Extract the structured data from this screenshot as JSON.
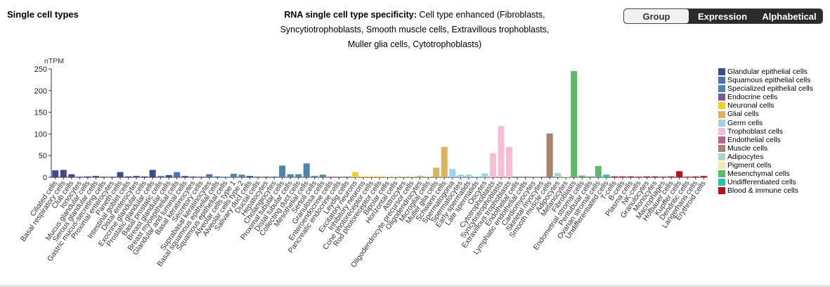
{
  "header": {
    "section_title": "Single cell types",
    "chart_title_bold": "RNA single cell type specificity:",
    "chart_title_rest": "Cell type enhanced (Fibroblasts, Syncytiotrophoblasts, Smooth muscle cells, Extravillous trophoblasts, Muller glia cells, Cytotrophoblasts)"
  },
  "toggle": {
    "group_label": "Group",
    "expression_label": "Expression",
    "alphabetical_label": "Alphabetical",
    "active": "Group"
  },
  "groups": [
    {
      "name": "Glandular epithelial cells",
      "color": "#3e4a89"
    },
    {
      "name": "Squamous epithelial cells",
      "color": "#4a72b8"
    },
    {
      "name": "Specialized epithelial cells",
      "color": "#4f86a8"
    },
    {
      "name": "Endocrine cells",
      "color": "#7c5a9e"
    },
    {
      "name": "Neuronal cells",
      "color": "#f2d024"
    },
    {
      "name": "Glial cells",
      "color": "#d9b35f"
    },
    {
      "name": "Germ cells",
      "color": "#99d4f0"
    },
    {
      "name": "Trophoblast cells",
      "color": "#f5bdd6"
    },
    {
      "name": "Endothelial cells",
      "color": "#b5678e"
    },
    {
      "name": "Muscle cells",
      "color": "#a8826b"
    },
    {
      "name": "Adipocytes",
      "color": "#a8d8cc"
    },
    {
      "name": "Pigment cells",
      "color": "#f5e8a8"
    },
    {
      "name": "Mesenchymal cells",
      "color": "#5fb96a"
    },
    {
      "name": "Undifferentiated cells",
      "color": "#22c4b0"
    },
    {
      "name": "Blood & immune cells",
      "color": "#b5121b"
    }
  ],
  "chart_data": {
    "type": "bar",
    "ylabel": "nTPM",
    "ylim": [
      0,
      250
    ],
    "yticks": [
      0,
      50,
      100,
      150,
      200,
      250
    ],
    "categories": [
      "Ciliated cells",
      "Basal respiratory cells",
      "Club cells",
      "Ionocytes",
      "Mucus glandular cells",
      "Serous glandular cells",
      "Gastric mucus-secreting cells",
      "Proximal enterocytes",
      "Paneth cells",
      "Intestinal goblet cells",
      "Distal enterocytes",
      "Exocrine glandular cells",
      "Prostatic glandular cells",
      "Basal prostatic cells",
      "Breast glandular cells",
      "Breast myoepithelial cells",
      "Glandular and luminal cells",
      "Basal keratinocytes",
      "Secretory cells",
      "Suprabasal keratinocytes",
      "Basal squamous epithelial cells",
      "Squamous epithelial cells",
      "Alveolar cells type 1",
      "Alveolar cells type 2",
      "Salivary duct cells",
      "Ductal cells",
      "Hepatocytes",
      "Cholangiocytes",
      "Proximal tubular cells",
      "Distal tubular cells",
      "Collecting duct cells",
      "Mesothelial cells",
      "Sertoli cells",
      "Granulosa cells",
      "Enteroendocrine cells",
      "Pancreatic endocrine cells",
      "Leydig cells",
      "Excitatory neurons",
      "Inhibitory neurons",
      "Cone photoreceptor cells",
      "Rod photoreceptor cells",
      "Bipolar cells",
      "Horizontal cells",
      "Astrocytes",
      "Oligodendrocyte precursor cells",
      "Oligodendrocytes",
      "Microglial cells",
      "Muller glia cells",
      "Schwann cells",
      "Spermatogonia",
      "Spermatocytes",
      "Early spermatids",
      "Late spermatids",
      "Oocytes",
      "Cytotrophoblasts",
      "Syncytiotrophoblasts",
      "Extravillous trophoblasts",
      "Endothelial cells",
      "Lymphatic endothelial cells",
      "Cardiomyocytes",
      "Skeletal myocytes",
      "Smooth muscle cells",
      "Adipocytes",
      "Melanocytes",
      "Fibroblasts",
      "Endometrial stromal cells",
      "Peritubular cells",
      "Ovarian stromal cells",
      "Undifferentiated cells",
      "T-cells",
      "B-cells",
      "Plasma cells",
      "NK-cells",
      "Granulocytes",
      "Monocytes",
      "Macrophages",
      "Hofbauer cells",
      "Kupffer cells",
      "Dendritic cells",
      "Langerhans cells",
      "Erythroid cells"
    ],
    "values": [
      16,
      17,
      7,
      1,
      2,
      3,
      1,
      1,
      12,
      2,
      3,
      2,
      17,
      3,
      5,
      12,
      3,
      2,
      1,
      7,
      2,
      1,
      8,
      6,
      3,
      1,
      1,
      1,
      27,
      7,
      7,
      32,
      3,
      6,
      1,
      1,
      1,
      12,
      2,
      2,
      2,
      1,
      1,
      1,
      1,
      3,
      1,
      22,
      70,
      19,
      6,
      6,
      2,
      9,
      55,
      118,
      70,
      1,
      1,
      1,
      1,
      101,
      10,
      1,
      245,
      4,
      2,
      26,
      6,
      2,
      2,
      2,
      1,
      2,
      2,
      1,
      2,
      14,
      1,
      2,
      3
    ],
    "category_groups": [
      0,
      0,
      0,
      0,
      0,
      0,
      0,
      0,
      0,
      0,
      0,
      0,
      0,
      1,
      0,
      1,
      0,
      1,
      0,
      1,
      1,
      1,
      2,
      2,
      0,
      0,
      0,
      0,
      2,
      2,
      2,
      2,
      2,
      2,
      3,
      3,
      3,
      4,
      4,
      4,
      4,
      4,
      4,
      5,
      5,
      5,
      5,
      5,
      5,
      6,
      6,
      6,
      6,
      6,
      7,
      7,
      7,
      8,
      8,
      9,
      9,
      9,
      10,
      11,
      12,
      12,
      12,
      12,
      13,
      14,
      14,
      14,
      14,
      14,
      14,
      14,
      14,
      14,
      14,
      14,
      14
    ]
  }
}
